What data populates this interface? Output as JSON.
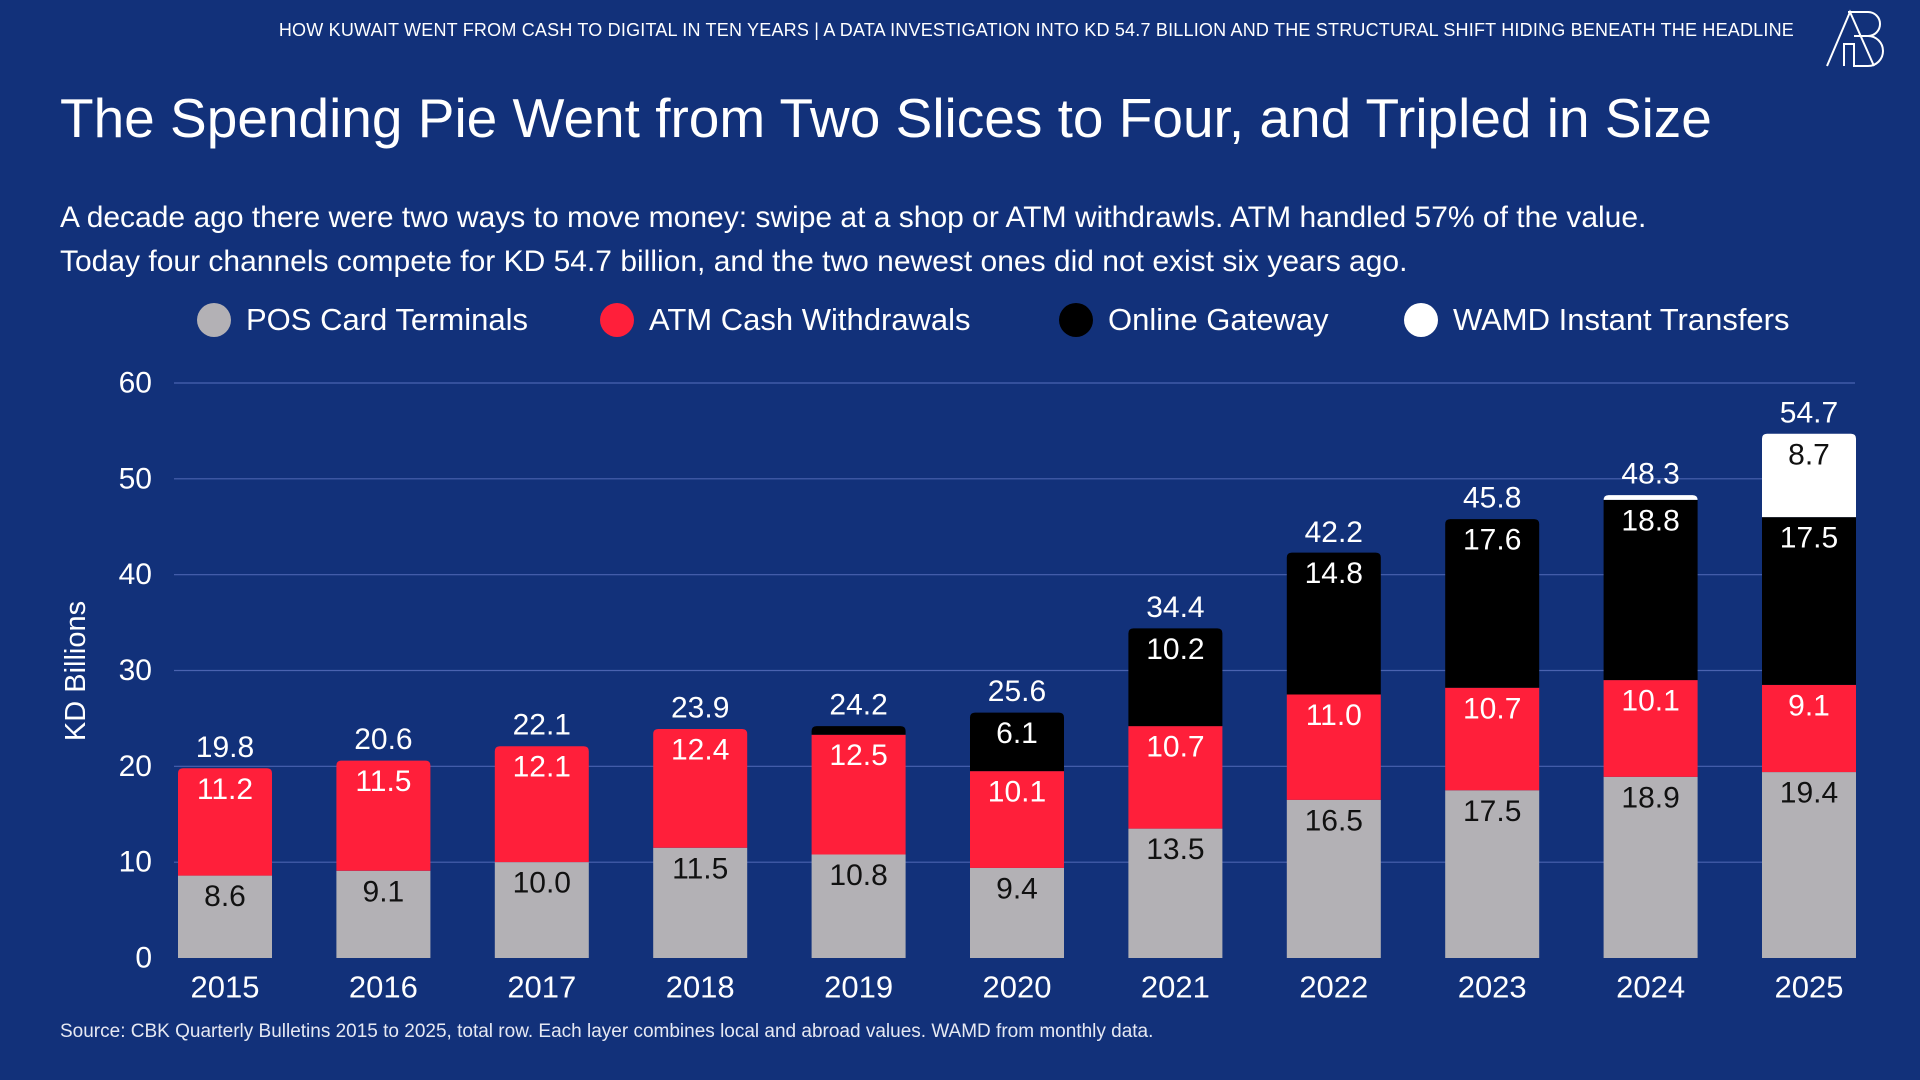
{
  "header": {
    "kicker": "HOW KUWAIT WENT FROM CASH TO DIGITAL IN TEN YEARS | A DATA INVESTIGATION INTO KD 54.7 BILLION AND THE STRUCTURAL SHIFT HIDING BENEATH THE HEADLINE",
    "logo_text": "AB"
  },
  "title": "The Spending Pie Went from Two Slices to Four, and Tripled in Size",
  "subtitle": [
    "A decade ago there were two ways to move money: swipe at a shop or ATM withdrawls. ATM handled 57% of the value.",
    "Today four channels compete for KD 54.7 billion, and the two newest ones did not exist six years ago."
  ],
  "source": "Source: CBK Quarterly Bulletins 2015 to 2025, total row. Each layer combines local and abroad values. WAMD from monthly data.",
  "chart_data": {
    "type": "bar",
    "stacked": true,
    "ylabel": "KD Billions",
    "ylim": [
      0,
      60
    ],
    "yticks": [
      0,
      10,
      20,
      30,
      40,
      50,
      60
    ],
    "grid": true,
    "legend_position": "top",
    "categories": [
      "2015",
      "2016",
      "2017",
      "2018",
      "2019",
      "2020",
      "2021",
      "2022",
      "2023",
      "2024",
      "2025"
    ],
    "series": [
      {
        "name": "POS Card Terminals",
        "color": "#b3b1b5",
        "label_color": "#111111",
        "values": [
          8.6,
          9.1,
          10.0,
          11.5,
          10.8,
          9.4,
          13.5,
          16.5,
          17.5,
          18.9,
          19.4
        ]
      },
      {
        "name": "ATM Cash Withdrawals",
        "color": "#ff1f3a",
        "label_color": "#ffffff",
        "values": [
          11.2,
          11.5,
          12.1,
          12.4,
          12.5,
          10.1,
          10.7,
          11.0,
          10.7,
          10.1,
          9.1
        ]
      },
      {
        "name": "Online Gateway",
        "color": "#000000",
        "label_color": "#ffffff",
        "values": [
          0,
          0,
          0,
          0,
          0.9,
          6.1,
          10.2,
          14.8,
          17.6,
          18.8,
          17.5
        ]
      },
      {
        "name": "WAMD Instant Transfers",
        "color": "#ffffff",
        "label_color": "#111111",
        "values": [
          0,
          0,
          0,
          0,
          0,
          0,
          0,
          0,
          0,
          0.5,
          8.7
        ]
      }
    ],
    "totals": [
      19.8,
      20.6,
      22.1,
      23.9,
      24.2,
      25.6,
      34.4,
      42.2,
      45.8,
      48.3,
      54.7
    ]
  }
}
